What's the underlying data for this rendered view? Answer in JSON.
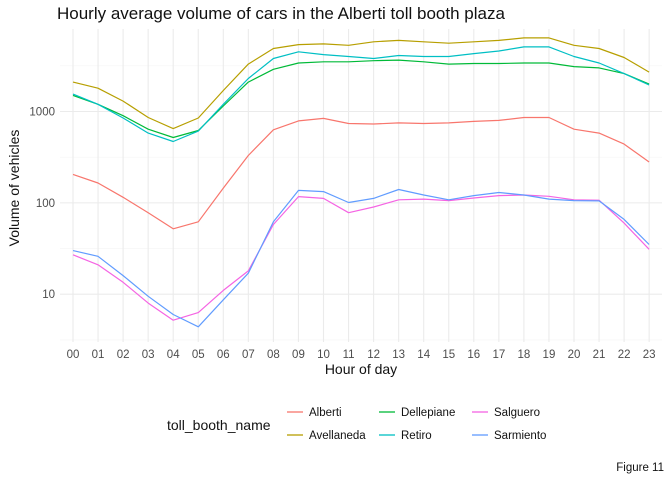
{
  "chart_data": {
    "type": "line",
    "title": "Hourly average volume of cars in the Alberti toll booth plaza",
    "xlabel": "Hour of day",
    "ylabel": "Volume of vehicles",
    "y_scale": "log10",
    "ylim": [
      3,
      8000
    ],
    "y_ticks": [
      10,
      100,
      1000
    ],
    "y_tick_labels": [
      "10",
      "100",
      "1000"
    ],
    "categories": [
      "00",
      "01",
      "02",
      "03",
      "04",
      "05",
      "06",
      "07",
      "08",
      "09",
      "10",
      "11",
      "12",
      "13",
      "14",
      "15",
      "16",
      "17",
      "18",
      "19",
      "20",
      "21",
      "22",
      "23"
    ],
    "grid": true,
    "legend": {
      "title": "toll_booth_name",
      "position": "bottom",
      "ncol": 3
    },
    "caption": "Figure 11",
    "series": [
      {
        "name": "Alberti",
        "color": "#F8766D",
        "values": [
          205,
          165,
          115,
          78,
          52,
          62,
          145,
          330,
          630,
          790,
          840,
          740,
          730,
          750,
          740,
          750,
          780,
          800,
          860,
          860,
          640,
          580,
          440,
          280
        ]
      },
      {
        "name": "Avellaneda",
        "color": "#B79F00",
        "values": [
          2100,
          1800,
          1300,
          860,
          650,
          850,
          1700,
          3300,
          4900,
          5400,
          5500,
          5300,
          5800,
          6000,
          5800,
          5600,
          5800,
          6000,
          6400,
          6400,
          5300,
          4900,
          3900,
          2700
        ]
      },
      {
        "name": "Dellepiane",
        "color": "#00BA38",
        "values": [
          1500,
          1200,
          900,
          640,
          520,
          620,
          1150,
          2100,
          2900,
          3400,
          3500,
          3500,
          3600,
          3650,
          3500,
          3300,
          3350,
          3350,
          3400,
          3400,
          3100,
          3000,
          2600,
          2000
        ]
      },
      {
        "name": "Retiro",
        "color": "#00BFC4",
        "values": [
          1550,
          1200,
          850,
          580,
          470,
          610,
          1200,
          2300,
          3800,
          4500,
          4200,
          4000,
          3800,
          4100,
          4000,
          4000,
          4300,
          4600,
          5100,
          5100,
          4000,
          3400,
          2600,
          1950
        ]
      },
      {
        "name": "Salguero",
        "color": "#F564E3",
        "values": [
          27,
          21,
          13.5,
          8,
          5.2,
          6.3,
          11,
          18,
          58,
          117,
          112,
          78,
          90,
          108,
          110,
          106,
          113,
          120,
          122,
          118,
          108,
          107,
          60,
          31
        ]
      },
      {
        "name": "Sarmiento",
        "color": "#619CFF",
        "values": [
          30,
          26,
          16,
          9.5,
          6,
          4.4,
          8.7,
          17,
          62,
          137,
          133,
          101,
          112,
          140,
          122,
          108,
          120,
          130,
          122,
          110,
          106,
          105,
          66,
          35
        ]
      }
    ]
  }
}
